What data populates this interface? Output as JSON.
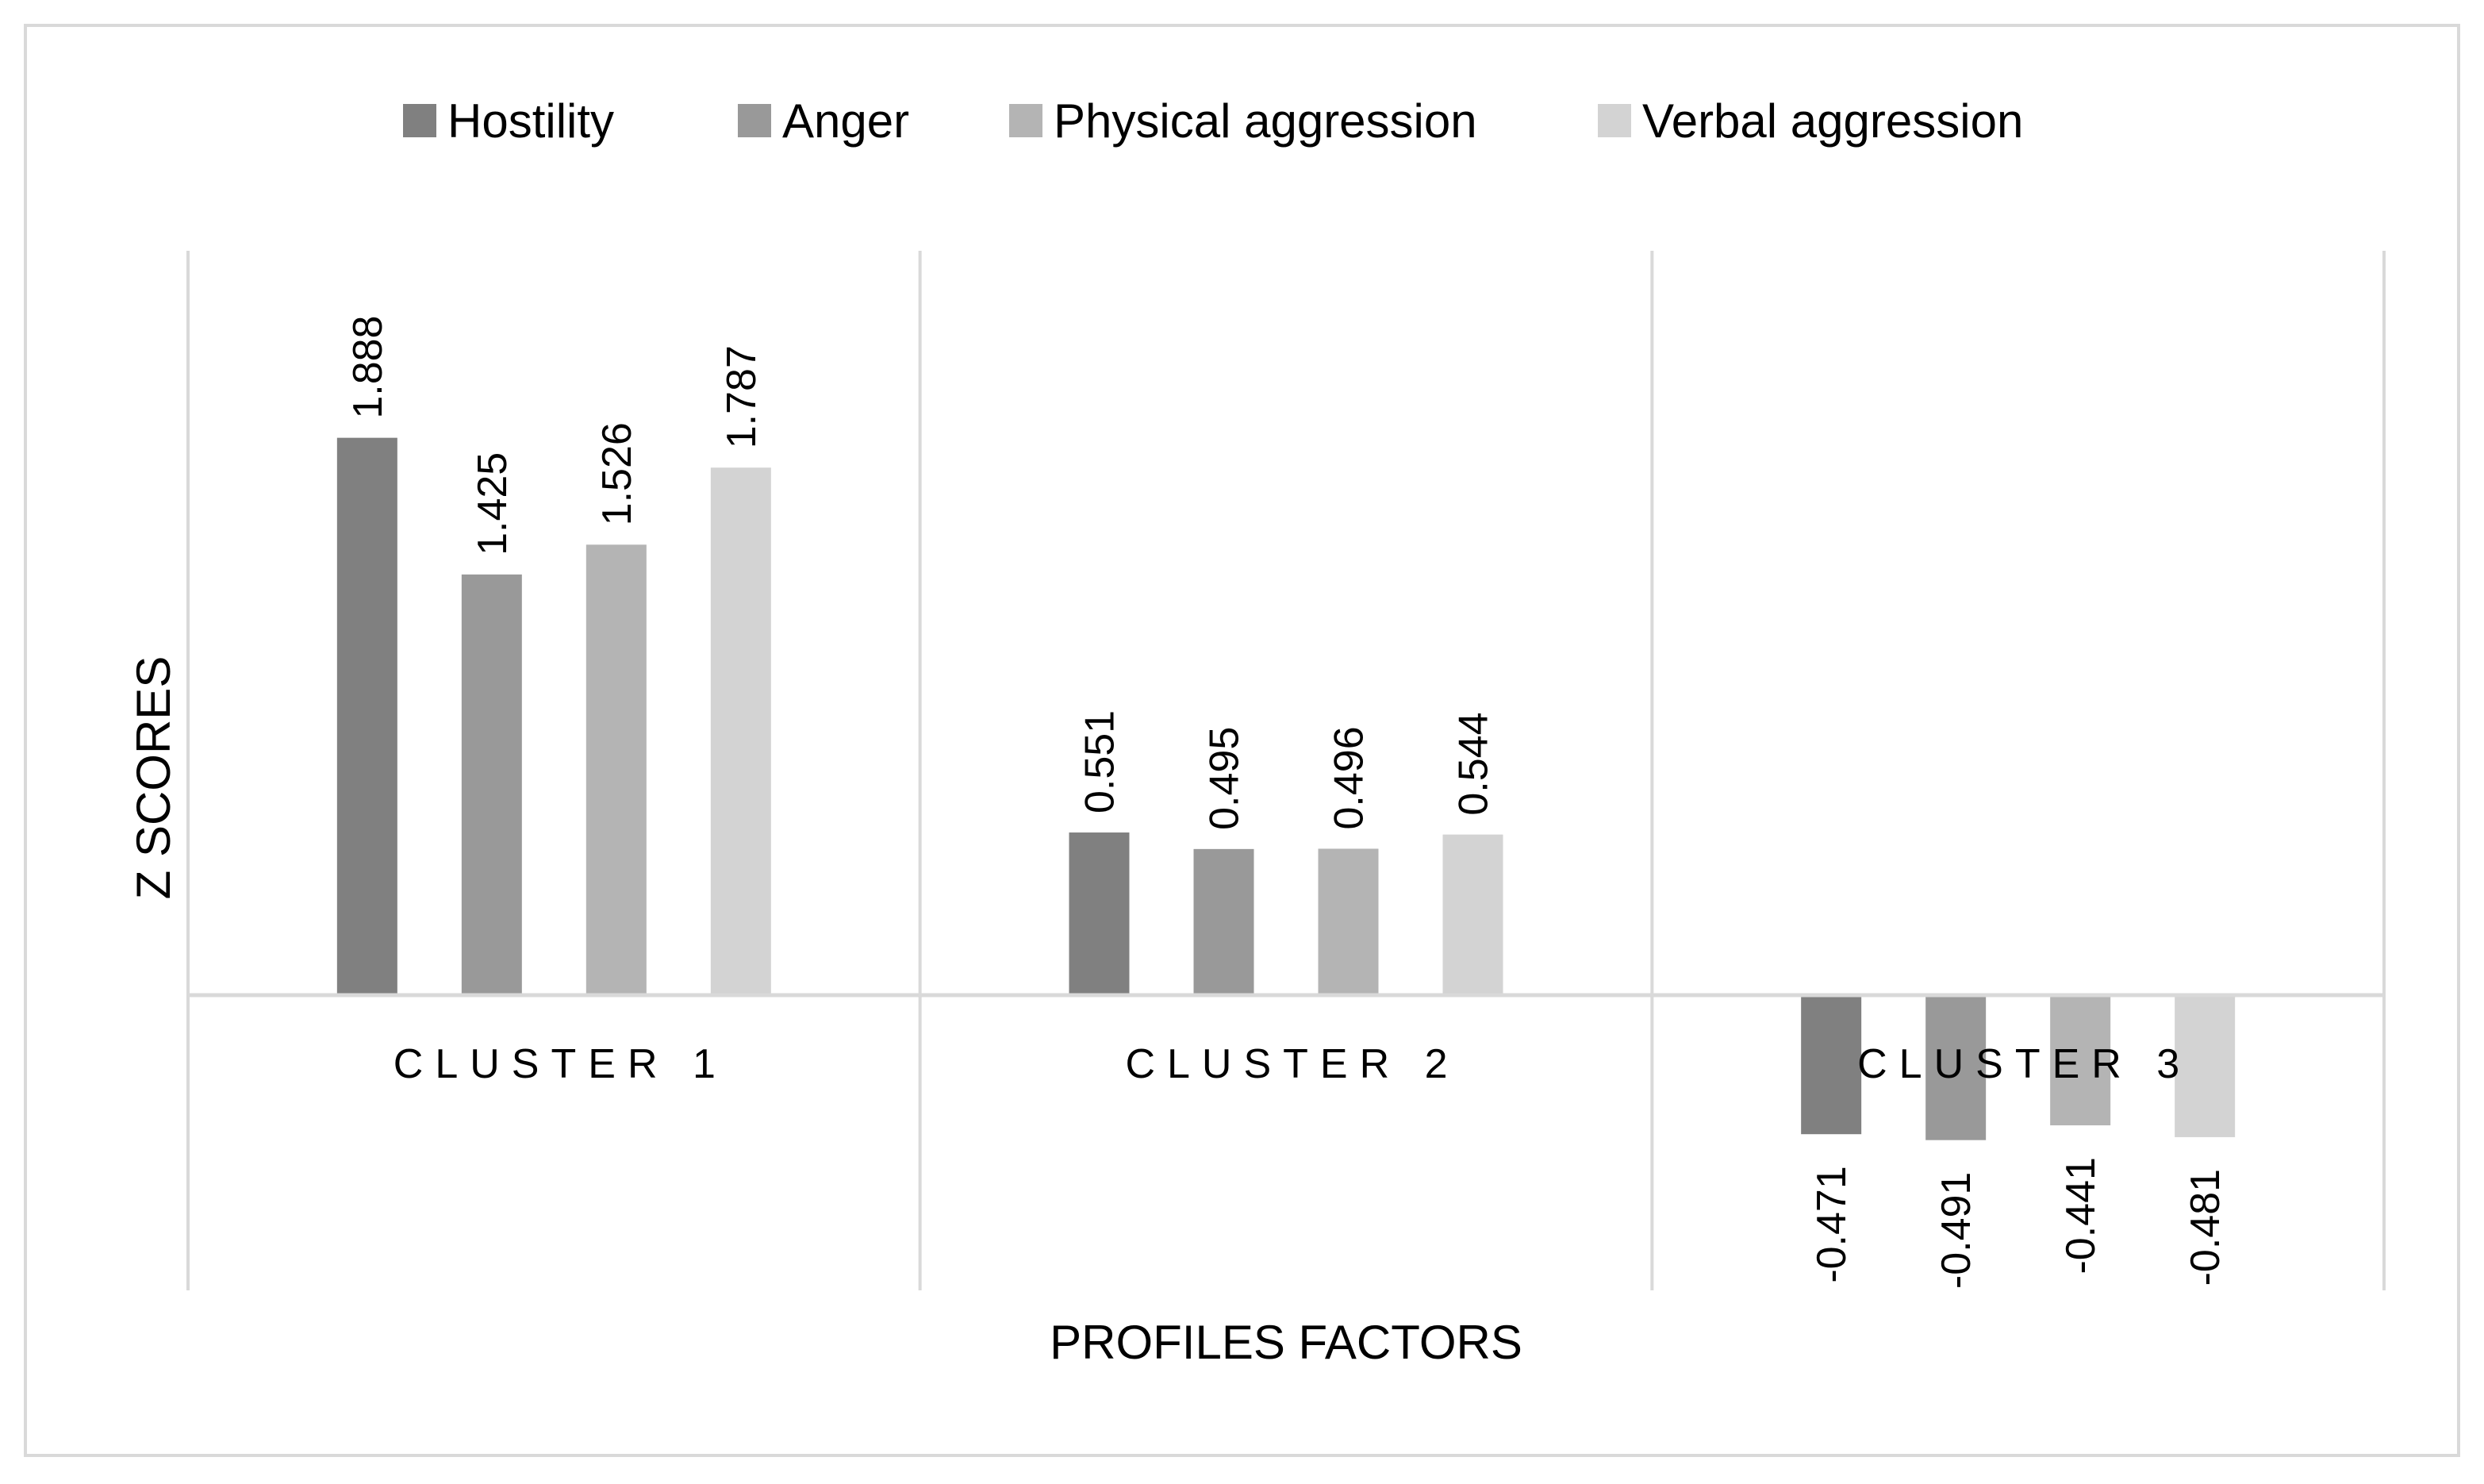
{
  "chart_data": {
    "type": "bar",
    "title": "",
    "xlabel": "PROFILES FACTORS",
    "ylabel": "Z SCORES",
    "categories": [
      "CLUSTER 1",
      "CLUSTER 2",
      "CLUSTER 3"
    ],
    "series": [
      {
        "name": "Hostility",
        "color": "#808080",
        "values": [
          1.888,
          0.551,
          -0.471
        ],
        "labels": [
          "1.888",
          "0.551",
          "-0.471"
        ]
      },
      {
        "name": "Anger",
        "color": "#999999",
        "values": [
          1.425,
          0.495,
          -0.491
        ],
        "labels": [
          "1.425",
          "0.495",
          "-0.491"
        ]
      },
      {
        "name": "Physical aggression",
        "color": "#b4b4b4",
        "values": [
          1.526,
          0.496,
          -0.441
        ],
        "labels": [
          "1.526",
          "0.496",
          "-0.441"
        ]
      },
      {
        "name": "Verbal aggression",
        "color": "#d3d3d3",
        "values": [
          1.787,
          0.544,
          -0.481
        ],
        "labels": [
          "1.787",
          "0.544",
          "-0.481"
        ]
      }
    ],
    "ylim": [
      -1.0,
      2.5
    ],
    "legend_position": "top",
    "grid": false,
    "gridline_color": "#d9d9d9"
  }
}
